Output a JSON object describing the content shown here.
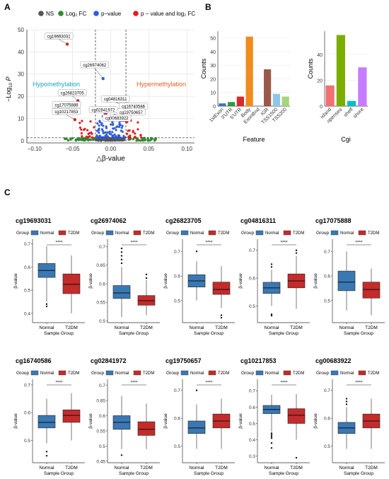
{
  "figure": {
    "panel_letters": [
      "A",
      "B",
      "C"
    ]
  },
  "colors": {
    "ns": "#555555",
    "log2fc": "#2e8b2e",
    "pvalue": "#2f5fe0",
    "both": "#e01f1f",
    "hypo": "#1aa6b7",
    "hyper": "#e0611a",
    "normal": "#3a78b4",
    "t2dm": "#c42b2b",
    "grid": "#e6e6e6",
    "axis": "#333333"
  },
  "chart_data": [
    {
      "id": "A",
      "type": "scatter",
      "subtype": "volcano",
      "legend": [
        "NS",
        "Log₂ FC",
        "p−value",
        "p − value and log₂ FC"
      ],
      "xlabel": "△β-value",
      "ylabel_main": "−Log",
      "ylabel_sub": "10",
      "ylabel_end": "P",
      "xlim": [
        -0.11,
        0.11
      ],
      "ylim": [
        -1,
        50
      ],
      "xticks": [
        -0.1,
        -0.05,
        0.0,
        0.05,
        0.1
      ],
      "xtick_labels": [
        "−0.10",
        "−0.05",
        "0.00",
        "0.05",
        "0.10"
      ],
      "yticks": [
        0,
        10,
        20,
        30,
        40,
        50
      ],
      "thresholds": {
        "x": [
          -0.02,
          0.02
        ],
        "y": 1.3
      },
      "region_labels": {
        "left": "Hypomethylation",
        "right": "Hypermethylation"
      },
      "labeled_points": [
        {
          "label": "cg19693031",
          "x": -0.057,
          "y": 43.5
        },
        {
          "label": "cg26974062",
          "x": -0.01,
          "y": 28.0
        },
        {
          "label": "cg26823705",
          "x": -0.043,
          "y": 18.0
        },
        {
          "label": "cg04816311",
          "x": 0.021,
          "y": 15.5
        },
        {
          "label": "cg16740586",
          "x": 0.026,
          "y": 14.5
        },
        {
          "label": "cg17075888",
          "x": -0.045,
          "y": 13.5
        },
        {
          "label": "cg02841972",
          "x": -0.006,
          "y": 12.5
        },
        {
          "label": "cg19750657",
          "x": 0.025,
          "y": 11.5
        },
        {
          "label": "cg10217853",
          "x": -0.047,
          "y": 9.5
        },
        {
          "label": "cg00683922",
          "x": 0.021,
          "y": 8.5
        }
      ],
      "grid": true
    },
    {
      "id": "B1",
      "type": "bar",
      "ylabel": "Counts",
      "xlabel": "Feature",
      "ylim": [
        0,
        55
      ],
      "yticks": [
        0,
        10,
        20,
        30,
        40,
        50
      ],
      "categories": [
        "1stExon",
        "3'UTR",
        "5'UTR",
        "Body",
        "ExonBnd",
        "IGR",
        "TSS1500",
        "TSS200"
      ],
      "values": [
        2,
        3,
        7,
        51,
        0,
        27,
        9,
        7
      ],
      "colors": [
        "#3b74b8",
        "#2e9a3e",
        "#d72a2a",
        "#f28a1c",
        "#9b6bc4",
        "#9a5a4a",
        "#8ec6ea",
        "#a6d57d"
      ]
    },
    {
      "id": "B2",
      "type": "bar",
      "ylabel": "Counts",
      "xlabel": "Cgi",
      "ylim": [
        0,
        58
      ],
      "yticks": [
        0,
        20,
        40
      ],
      "categories": [
        "island",
        "opensea",
        "shelf",
        "shore"
      ],
      "values": [
        16,
        55,
        4,
        30
      ],
      "colors": [
        "#f27070",
        "#7cae00",
        "#00bfc4",
        "#c77cff"
      ]
    },
    {
      "id": "C",
      "type": "box",
      "group_title": "Group",
      "group_names": [
        "Normal",
        "T2DM"
      ],
      "ylabel": "β-value",
      "xlabel": "Sample Group",
      "significance": "****",
      "plots": [
        {
          "title": "cg19693031",
          "ylim": [
            0.36,
            0.72
          ],
          "yticks": [
            0.4,
            0.5,
            0.6,
            0.7
          ],
          "normal": {
            "min": 0.45,
            "q1": 0.555,
            "median": 0.585,
            "q3": 0.615,
            "max": 0.69,
            "outliers": [
              0.44,
              0.43
            ]
          },
          "t2dm": {
            "min": 0.4,
            "q1": 0.485,
            "median": 0.525,
            "q3": 0.57,
            "max": 0.65,
            "outliers": []
          }
        },
        {
          "title": "cg26974062",
          "ylim": [
            0.495,
            0.72
          ],
          "yticks": [
            0.5,
            0.55,
            0.6,
            0.65,
            0.7
          ],
          "normal": {
            "min": 0.51,
            "q1": 0.56,
            "median": 0.575,
            "q3": 0.595,
            "max": 0.645,
            "outliers": [
              0.655,
              0.665,
              0.675,
              0.685,
              0.695
            ]
          },
          "t2dm": {
            "min": 0.515,
            "q1": 0.542,
            "median": 0.554,
            "q3": 0.568,
            "max": 0.61,
            "outliers": [
              0.615,
              0.625
            ]
          }
        },
        {
          "title": "cg26823705",
          "ylim": [
            0.41,
            0.75
          ],
          "yticks": [
            0.5,
            0.6,
            0.7
          ],
          "normal": {
            "min": 0.5,
            "q1": 0.555,
            "median": 0.58,
            "q3": 0.605,
            "max": 0.66,
            "outliers": [
              0.7
            ]
          },
          "t2dm": {
            "min": 0.47,
            "q1": 0.525,
            "median": 0.545,
            "q3": 0.575,
            "max": 0.64,
            "outliers": [
              0.44,
              0.43
            ]
          }
        },
        {
          "title": "cg04816311",
          "ylim": [
            0.44,
            0.74
          ],
          "yticks": [
            0.5,
            0.6,
            0.7
          ],
          "normal": {
            "min": 0.5,
            "q1": 0.545,
            "median": 0.565,
            "q3": 0.585,
            "max": 0.63,
            "outliers": [
              0.64,
              0.65,
              0.47,
              0.465
            ]
          },
          "t2dm": {
            "min": 0.49,
            "q1": 0.565,
            "median": 0.59,
            "q3": 0.615,
            "max": 0.68,
            "outliers": [
              0.69,
              0.7
            ]
          }
        },
        {
          "title": "cg17075888",
          "ylim": [
            0.41,
            0.75
          ],
          "yticks": [
            0.5,
            0.6,
            0.7
          ],
          "normal": {
            "min": 0.46,
            "q1": 0.54,
            "median": 0.575,
            "q3": 0.62,
            "max": 0.7,
            "outliers": []
          },
          "t2dm": {
            "min": 0.44,
            "q1": 0.51,
            "median": 0.545,
            "q3": 0.575,
            "max": 0.63,
            "outliers": []
          }
        },
        {
          "title": "cg16740586",
          "ylim": [
            0.42,
            0.72
          ],
          "yticks": [
            0.5,
            0.6,
            0.7
          ],
          "normal": {
            "min": 0.49,
            "q1": 0.545,
            "median": 0.565,
            "q3": 0.59,
            "max": 0.65,
            "outliers": [
              0.46,
              0.445
            ]
          },
          "t2dm": {
            "min": 0.5,
            "q1": 0.565,
            "median": 0.59,
            "q3": 0.61,
            "max": 0.67,
            "outliers": []
          }
        },
        {
          "title": "cg02841972",
          "ylim": [
            0.445,
            0.72
          ],
          "yticks": [
            0.45,
            0.5,
            0.55,
            0.6,
            0.65,
            0.7
          ],
          "normal": {
            "min": 0.49,
            "q1": 0.555,
            "median": 0.578,
            "q3": 0.6,
            "max": 0.665,
            "outliers": [
              0.47
            ]
          },
          "t2dm": {
            "min": 0.49,
            "q1": 0.535,
            "median": 0.555,
            "q3": 0.58,
            "max": 0.64,
            "outliers": []
          }
        },
        {
          "title": "cg19750657",
          "ylim": [
            0.44,
            0.74
          ],
          "yticks": [
            0.5,
            0.6,
            0.7
          ],
          "normal": {
            "min": 0.49,
            "q1": 0.545,
            "median": 0.565,
            "q3": 0.59,
            "max": 0.65,
            "outliers": [
              0.7
            ]
          },
          "t2dm": {
            "min": 0.49,
            "q1": 0.565,
            "median": 0.59,
            "q3": 0.615,
            "max": 0.67,
            "outliers": []
          }
        },
        {
          "title": "cg10217853",
          "ylim": [
            0.26,
            0.77
          ],
          "yticks": [
            0.3,
            0.4,
            0.5,
            0.6,
            0.7
          ],
          "normal": {
            "min": 0.45,
            "q1": 0.56,
            "median": 0.585,
            "q3": 0.61,
            "max": 0.675,
            "outliers": [
              0.44,
              0.43,
              0.42,
              0.41,
              0.38,
              0.35
            ]
          },
          "t2dm": {
            "min": 0.4,
            "q1": 0.5,
            "median": 0.55,
            "q3": 0.59,
            "max": 0.68,
            "outliers": [
              0.29
            ]
          }
        },
        {
          "title": "cg00683922",
          "ylim": [
            0.44,
            0.74
          ],
          "yticks": [
            0.5,
            0.6,
            0.7
          ],
          "normal": {
            "min": 0.49,
            "q1": 0.545,
            "median": 0.565,
            "q3": 0.585,
            "max": 0.64,
            "outliers": [
              0.65,
              0.66,
              0.67
            ]
          },
          "t2dm": {
            "min": 0.49,
            "q1": 0.565,
            "median": 0.59,
            "q3": 0.615,
            "max": 0.67,
            "outliers": []
          }
        }
      ]
    }
  ]
}
